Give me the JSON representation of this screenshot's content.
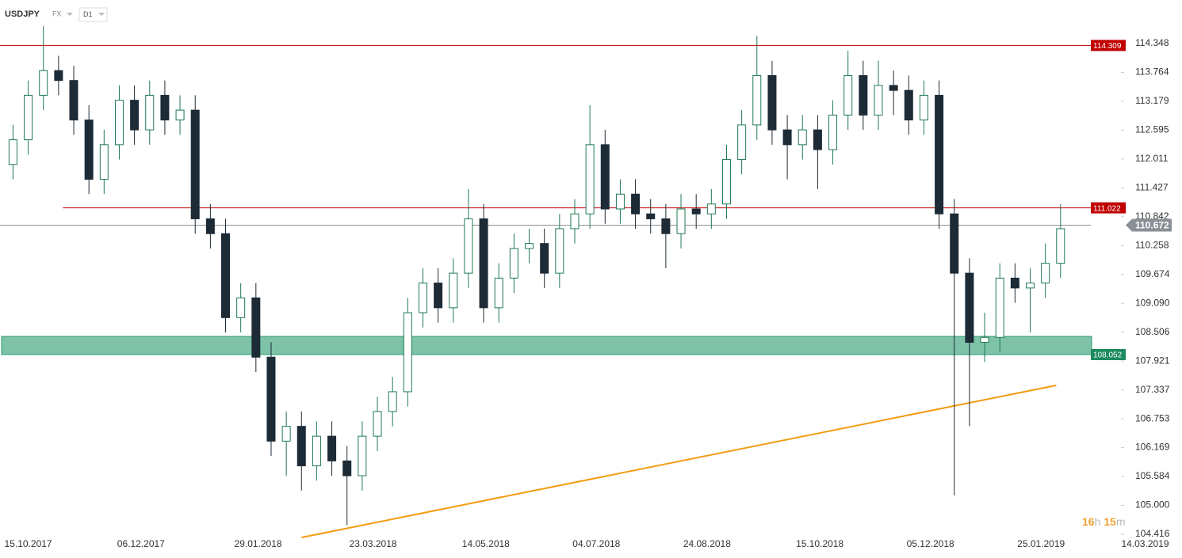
{
  "header": {
    "symbol": "USDJPY",
    "market": "FX",
    "interval": "D1"
  },
  "timer": {
    "hours": "16",
    "hours_unit": "h",
    "minutes": "15",
    "minutes_unit": "m"
  },
  "chart_data": {
    "type": "candlestick",
    "x": [
      "08.10.2017",
      "15.10.2017",
      "22.10.2017",
      "29.10.2017",
      "05.11.2017",
      "12.11.2017",
      "19.11.2017",
      "26.11.2017",
      "03.12.2017",
      "10.12.2017",
      "17.12.2017",
      "24.12.2017",
      "31.12.2017",
      "07.01.2018",
      "14.01.2018",
      "21.01.2018",
      "28.01.2018",
      "04.02.2018",
      "11.02.2018",
      "18.02.2018",
      "25.02.2018",
      "04.03.2018",
      "11.03.2018",
      "18.03.2018",
      "25.03.2018",
      "01.04.2018",
      "08.04.2018",
      "15.04.2018",
      "22.04.2018",
      "29.04.2018",
      "06.05.2018",
      "13.05.2018",
      "20.05.2018",
      "27.05.2018",
      "03.06.2018",
      "10.06.2018",
      "17.06.2018",
      "24.06.2018",
      "01.07.2018",
      "08.07.2018",
      "15.07.2018",
      "22.07.2018",
      "29.07.2018",
      "05.08.2018",
      "12.08.2018",
      "19.08.2018",
      "26.08.2018",
      "02.09.2018",
      "09.09.2018",
      "16.09.2018",
      "23.09.2018",
      "30.09.2018",
      "07.10.2018",
      "14.10.2018",
      "21.10.2018",
      "28.10.2018",
      "04.11.2018",
      "11.11.2018",
      "18.11.2018",
      "25.11.2018",
      "02.12.2018",
      "09.12.2018",
      "16.12.2018",
      "23.12.2018",
      "30.12.2018",
      "06.01.2019",
      "13.01.2019",
      "20.01.2019",
      "27.01.2019",
      "03.02.2019"
    ],
    "open": [
      111.9,
      112.4,
      113.3,
      113.8,
      113.6,
      112.8,
      111.6,
      112.3,
      113.2,
      112.6,
      113.3,
      112.8,
      113.0,
      110.8,
      110.5,
      108.8,
      109.2,
      108.0,
      106.3,
      106.6,
      105.8,
      106.4,
      105.9,
      105.6,
      106.4,
      106.9,
      107.3,
      108.9,
      109.5,
      109.0,
      109.7,
      110.8,
      109.0,
      109.6,
      110.2,
      110.3,
      109.7,
      110.6,
      110.9,
      112.3,
      111.0,
      111.3,
      110.9,
      110.8,
      110.5,
      111.0,
      110.9,
      111.1,
      112.0,
      112.7,
      113.7,
      112.6,
      112.3,
      112.6,
      112.2,
      112.9,
      113.7,
      112.9,
      113.5,
      113.4,
      112.8,
      113.3,
      110.9,
      109.7,
      108.3,
      108.4,
      109.6,
      109.4,
      109.5,
      109.9
    ],
    "high": [
      112.7,
      113.6,
      114.7,
      114.1,
      113.9,
      113.1,
      112.6,
      113.5,
      113.5,
      113.6,
      113.6,
      113.3,
      113.3,
      111.1,
      110.8,
      109.5,
      109.5,
      108.3,
      106.9,
      106.9,
      106.7,
      106.7,
      106.2,
      106.7,
      107.2,
      107.6,
      109.2,
      109.8,
      109.8,
      110.0,
      111.4,
      111.1,
      109.9,
      110.5,
      110.6,
      110.6,
      110.9,
      111.2,
      113.1,
      112.6,
      111.6,
      111.6,
      111.2,
      111.1,
      111.3,
      111.3,
      111.4,
      112.3,
      113.0,
      114.5,
      114.0,
      112.9,
      112.9,
      112.9,
      113.2,
      114.2,
      114.0,
      114.0,
      113.8,
      113.7,
      113.6,
      113.6,
      111.2,
      110.0,
      108.9,
      109.9,
      109.9,
      109.8,
      110.3,
      111.1
    ],
    "low": [
      111.6,
      112.1,
      113.0,
      113.3,
      112.5,
      111.3,
      111.3,
      112.0,
      112.3,
      112.3,
      112.5,
      112.5,
      110.5,
      110.2,
      108.5,
      108.5,
      107.7,
      106.0,
      105.6,
      105.3,
      105.5,
      105.6,
      104.6,
      105.3,
      106.1,
      106.6,
      107.0,
      108.6,
      108.7,
      108.7,
      109.4,
      108.7,
      108.7,
      109.3,
      109.9,
      109.4,
      109.4,
      110.3,
      110.6,
      110.7,
      110.7,
      110.6,
      110.5,
      109.8,
      110.2,
      110.6,
      110.6,
      110.8,
      111.7,
      112.4,
      112.3,
      111.6,
      112.0,
      111.4,
      111.9,
      112.6,
      112.6,
      112.6,
      112.9,
      112.5,
      112.5,
      110.6,
      105.2,
      106.6,
      107.9,
      108.1,
      109.1,
      108.5,
      109.2,
      109.6
    ],
    "close": [
      112.4,
      113.3,
      113.8,
      113.6,
      112.8,
      111.6,
      112.3,
      113.2,
      112.6,
      113.3,
      112.8,
      113.0,
      110.8,
      110.5,
      108.8,
      109.2,
      108.0,
      106.3,
      106.6,
      105.8,
      106.4,
      105.9,
      105.6,
      106.4,
      106.9,
      107.3,
      108.9,
      109.5,
      109.0,
      109.7,
      110.8,
      109.0,
      109.6,
      110.2,
      110.3,
      109.7,
      110.6,
      110.9,
      112.3,
      111.0,
      111.3,
      110.9,
      110.8,
      110.5,
      111.0,
      110.9,
      111.1,
      112.0,
      112.7,
      113.7,
      112.6,
      112.3,
      112.6,
      112.2,
      112.9,
      113.7,
      112.9,
      113.5,
      113.4,
      112.8,
      113.3,
      110.9,
      109.7,
      108.3,
      108.4,
      109.6,
      109.4,
      109.5,
      109.9,
      110.6
    ],
    "up_color": "#1f7a55",
    "down_color": "#1c2b36",
    "xlim": [
      "02.10.2017",
      "31.03.2019"
    ],
    "xticks": [
      "15.10.2017",
      "06.12.2017",
      "29.01.2018",
      "23.03.2018",
      "14.05.2018",
      "04.07.2018",
      "24.08.2018",
      "15.10.2018",
      "05.12.2018",
      "25.01.2019",
      "14.03.2019"
    ],
    "ylim": [
      103.935,
      115.229
    ],
    "yticks": [
      114.348,
      113.764,
      113.179,
      112.595,
      112.011,
      111.427,
      110.842,
      110.258,
      109.674,
      {
        "value": 109.09,
        "label": "109.090"
      },
      108.506,
      107.921,
      107.337,
      106.753,
      106.169,
      105.584,
      {
        "value": 105,
        "label": "105.000"
      },
      104.416
    ],
    "levels": [
      {
        "value": 114.309,
        "from": "02.10.2017",
        "color": "#c00000"
      },
      {
        "value": 111.022,
        "from": "31.10.2017",
        "color": "#c00000"
      },
      {
        "value": 110.672,
        "from": "02.10.2017",
        "color": "#8a8f96"
      }
    ],
    "zone": {
      "low": 108.052,
      "high": 108.42,
      "color": "#2e9c72"
    },
    "trendline": {
      "x": [
        "18.02.2018",
        "01.02.2019"
      ],
      "y": [
        104.35,
        107.43
      ],
      "color": "#f39c12"
    }
  }
}
